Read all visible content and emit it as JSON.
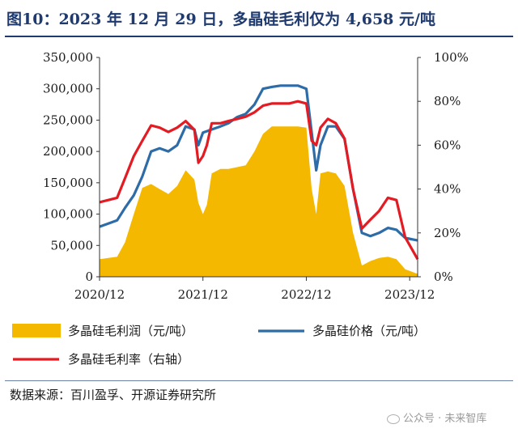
{
  "header": {
    "title": "图10：2023 年 12 月 29 日，多晶硅毛利仅为 4,658 元/吨"
  },
  "footer": {
    "source": "数据来源：百川盈孚、开源证券研究所",
    "watermark": "公众号 · 未来智库"
  },
  "colors": {
    "title": "#1f3a6e",
    "profit_area": "#f5b800",
    "price_line": "#2e6ca8",
    "margin_line": "#e31b23"
  },
  "chart_data": {
    "type": "area",
    "x_tick_labels": [
      "2020/12",
      "2021/12",
      "2022/12",
      "2023/12"
    ],
    "x_ticks": [
      "2020-12-01",
      "2021-12-01",
      "2022-12-01",
      "2023-12-01"
    ],
    "x_range": [
      "2020-12-01",
      "2023-12-29"
    ],
    "y_left": {
      "range": [
        0,
        350000
      ],
      "ticks": [
        "0",
        "50,000",
        "100,000",
        "150,000",
        "200,000",
        "250,000",
        "300,000",
        "350,000"
      ]
    },
    "y_right": {
      "range": [
        0,
        100
      ],
      "unit": "%",
      "ticks": [
        "0%",
        "20%",
        "40%",
        "60%",
        "80%",
        "100%"
      ]
    },
    "grid": false,
    "legend_position": "bottom",
    "series": [
      {
        "name": "多晶硅毛利润（元/吨）",
        "type": "area",
        "axis": "left",
        "points": [
          [
            "2020-12-01",
            28000
          ],
          [
            "2021-01-01",
            30000
          ],
          [
            "2021-02-01",
            32000
          ],
          [
            "2021-03-01",
            55000
          ],
          [
            "2021-04-01",
            100000
          ],
          [
            "2021-05-01",
            142000
          ],
          [
            "2021-06-01",
            148000
          ],
          [
            "2021-07-01",
            140000
          ],
          [
            "2021-08-01",
            132000
          ],
          [
            "2021-09-01",
            145000
          ],
          [
            "2021-10-01",
            170000
          ],
          [
            "2021-11-01",
            155000
          ],
          [
            "2021-11-15",
            118000
          ],
          [
            "2021-12-01",
            100000
          ],
          [
            "2021-12-15",
            115000
          ],
          [
            "2022-01-01",
            165000
          ],
          [
            "2022-02-01",
            172000
          ],
          [
            "2022-03-01",
            172000
          ],
          [
            "2022-04-01",
            175000
          ],
          [
            "2022-05-01",
            178000
          ],
          [
            "2022-06-01",
            200000
          ],
          [
            "2022-07-01",
            228000
          ],
          [
            "2022-08-01",
            240000
          ],
          [
            "2022-09-01",
            240000
          ],
          [
            "2022-10-01",
            240000
          ],
          [
            "2022-11-01",
            240000
          ],
          [
            "2022-12-01",
            238000
          ],
          [
            "2022-12-20",
            140000
          ],
          [
            "2023-01-05",
            100000
          ],
          [
            "2023-01-20",
            165000
          ],
          [
            "2023-02-15",
            168000
          ],
          [
            "2023-03-15",
            165000
          ],
          [
            "2023-04-15",
            145000
          ],
          [
            "2023-05-15",
            70000
          ],
          [
            "2023-06-15",
            18000
          ],
          [
            "2023-07-15",
            25000
          ],
          [
            "2023-08-15",
            30000
          ],
          [
            "2023-09-15",
            32000
          ],
          [
            "2023-10-15",
            28000
          ],
          [
            "2023-11-15",
            12000
          ],
          [
            "2023-12-29",
            4658
          ]
        ]
      },
      {
        "name": "多晶硅价格（元/吨）",
        "type": "line",
        "axis": "left",
        "points": [
          [
            "2020-12-01",
            80000
          ],
          [
            "2021-01-01",
            85000
          ],
          [
            "2021-02-01",
            90000
          ],
          [
            "2021-03-01",
            110000
          ],
          [
            "2021-04-01",
            130000
          ],
          [
            "2021-05-01",
            160000
          ],
          [
            "2021-06-01",
            200000
          ],
          [
            "2021-07-01",
            205000
          ],
          [
            "2021-08-01",
            200000
          ],
          [
            "2021-09-01",
            210000
          ],
          [
            "2021-10-01",
            240000
          ],
          [
            "2021-11-01",
            235000
          ],
          [
            "2021-11-15",
            210000
          ],
          [
            "2021-12-01",
            230000
          ],
          [
            "2022-01-01",
            235000
          ],
          [
            "2022-02-01",
            240000
          ],
          [
            "2022-03-01",
            245000
          ],
          [
            "2022-04-01",
            255000
          ],
          [
            "2022-05-01",
            260000
          ],
          [
            "2022-06-01",
            275000
          ],
          [
            "2022-07-01",
            300000
          ],
          [
            "2022-08-01",
            303000
          ],
          [
            "2022-09-01",
            305000
          ],
          [
            "2022-10-01",
            305000
          ],
          [
            "2022-11-01",
            305000
          ],
          [
            "2022-12-01",
            300000
          ],
          [
            "2022-12-20",
            230000
          ],
          [
            "2023-01-05",
            170000
          ],
          [
            "2023-01-20",
            210000
          ],
          [
            "2023-02-15",
            240000
          ],
          [
            "2023-03-15",
            240000
          ],
          [
            "2023-04-15",
            220000
          ],
          [
            "2023-05-15",
            140000
          ],
          [
            "2023-06-15",
            70000
          ],
          [
            "2023-07-15",
            65000
          ],
          [
            "2023-08-15",
            70000
          ],
          [
            "2023-09-15",
            78000
          ],
          [
            "2023-10-15",
            75000
          ],
          [
            "2023-11-15",
            62000
          ],
          [
            "2023-12-29",
            58000
          ]
        ]
      },
      {
        "name": "多晶硅毛利率（右轴）",
        "type": "line",
        "axis": "right",
        "points": [
          [
            "2020-12-01",
            34
          ],
          [
            "2021-01-01",
            35
          ],
          [
            "2021-02-01",
            36
          ],
          [
            "2021-03-01",
            45
          ],
          [
            "2021-04-01",
            55
          ],
          [
            "2021-05-01",
            62
          ],
          [
            "2021-06-01",
            69
          ],
          [
            "2021-07-01",
            68
          ],
          [
            "2021-08-01",
            66
          ],
          [
            "2021-09-01",
            68
          ],
          [
            "2021-10-01",
            71
          ],
          [
            "2021-11-01",
            67
          ],
          [
            "2021-11-15",
            52
          ],
          [
            "2021-12-01",
            55
          ],
          [
            "2021-12-15",
            60
          ],
          [
            "2022-01-01",
            70
          ],
          [
            "2022-02-01",
            70
          ],
          [
            "2022-03-01",
            71
          ],
          [
            "2022-04-01",
            72
          ],
          [
            "2022-05-01",
            73
          ],
          [
            "2022-06-01",
            75
          ],
          [
            "2022-07-01",
            78
          ],
          [
            "2022-08-01",
            79
          ],
          [
            "2022-09-01",
            79
          ],
          [
            "2022-10-01",
            79
          ],
          [
            "2022-11-01",
            80
          ],
          [
            "2022-12-01",
            79
          ],
          [
            "2022-12-20",
            62
          ],
          [
            "2023-01-05",
            60
          ],
          [
            "2023-01-20",
            68
          ],
          [
            "2023-02-15",
            72
          ],
          [
            "2023-03-15",
            70
          ],
          [
            "2023-04-15",
            63
          ],
          [
            "2023-05-15",
            40
          ],
          [
            "2023-06-15",
            22
          ],
          [
            "2023-07-15",
            26
          ],
          [
            "2023-08-15",
            30
          ],
          [
            "2023-09-15",
            36
          ],
          [
            "2023-10-15",
            35
          ],
          [
            "2023-11-15",
            18
          ],
          [
            "2023-12-29",
            8
          ]
        ]
      }
    ]
  }
}
